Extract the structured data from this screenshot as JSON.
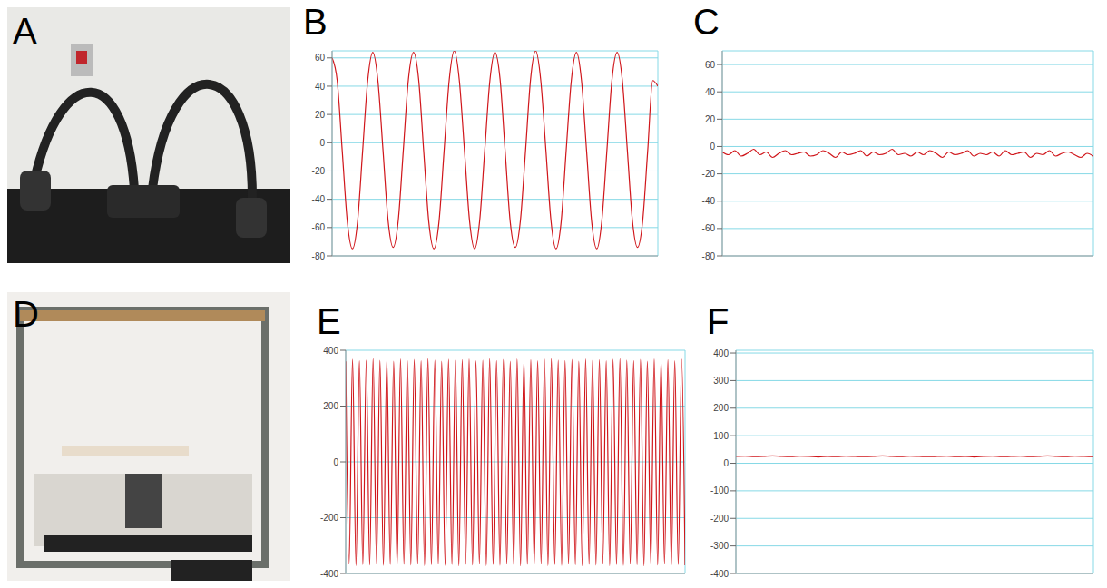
{
  "photos": [
    {
      "panel_label": "A"
    },
    {
      "panel_label": "D"
    }
  ],
  "chart_data": [
    {
      "panel_label": "B",
      "type": "line",
      "color": "#d0161b",
      "grid": true,
      "tick_labels": "y",
      "xlim": [
        0,
        64
      ],
      "xticks": [
        0,
        8,
        16,
        24,
        32,
        40,
        48,
        56,
        64
      ],
      "ylim": [
        -80,
        65
      ],
      "yticks": [
        -80,
        -60,
        -40,
        -20,
        0,
        20,
        40,
        60
      ],
      "x": [
        0,
        1,
        2,
        3,
        4,
        5,
        6,
        7,
        8,
        9,
        10,
        11,
        12,
        13,
        14,
        15,
        16,
        17,
        18,
        19,
        20,
        21,
        22,
        23,
        24,
        25,
        26,
        27,
        28,
        29,
        30,
        31,
        32,
        33,
        34,
        35,
        36,
        37,
        38,
        39,
        40,
        41,
        42,
        43,
        44,
        45,
        46,
        47,
        48,
        49,
        50,
        51,
        52,
        53,
        54,
        55,
        56,
        57,
        58,
        59,
        60,
        61,
        62,
        63,
        64
      ],
      "values": [
        60,
        44,
        -6,
        -56,
        -75,
        -56,
        -6,
        44,
        64,
        44,
        -5,
        -55,
        -74,
        -55,
        -5,
        45,
        64,
        45,
        -6,
        -56,
        -75,
        -56,
        -6,
        44,
        65,
        44,
        -5,
        -55,
        -75,
        -55,
        -5,
        44,
        64,
        45,
        -6,
        -56,
        -74,
        -55,
        -6,
        45,
        65,
        44,
        -5,
        -55,
        -75,
        -56,
        -5,
        44,
        64,
        44,
        -6,
        -56,
        -75,
        -55,
        -5,
        45,
        64,
        45,
        -5,
        -55,
        -74,
        -56,
        -6,
        44,
        40
      ]
    },
    {
      "panel_label": "C",
      "type": "line",
      "color": "#d0161b",
      "grid": true,
      "tick_labels": "y",
      "xlim": [
        0,
        59
      ],
      "xticks": [
        0,
        10,
        20,
        30,
        40,
        50
      ],
      "ylim": [
        -80,
        70
      ],
      "yticks": [
        -80,
        -60,
        -40,
        -20,
        0,
        20,
        40,
        60
      ],
      "x": [
        0,
        1,
        2,
        3,
        4,
        5,
        6,
        7,
        8,
        9,
        10,
        11,
        12,
        13,
        14,
        15,
        16,
        17,
        18,
        19,
        20,
        21,
        22,
        23,
        24,
        25,
        26,
        27,
        28,
        29,
        30,
        31,
        32,
        33,
        34,
        35,
        36,
        37,
        38,
        39,
        40,
        41,
        42,
        43,
        44,
        45,
        46,
        47,
        48,
        49,
        50,
        51,
        52,
        53,
        54,
        55,
        56,
        57,
        58,
        59
      ],
      "values": [
        -4,
        -6,
        -3,
        -7,
        -5,
        -2,
        -6,
        -4,
        -8,
        -5,
        -3,
        -6,
        -5,
        -4,
        -7,
        -6,
        -3,
        -5,
        -8,
        -4,
        -6,
        -5,
        -3,
        -7,
        -4,
        -6,
        -5,
        -2,
        -6,
        -5,
        -7,
        -4,
        -6,
        -3,
        -5,
        -8,
        -4,
        -6,
        -5,
        -3,
        -7,
        -5,
        -6,
        -4,
        -7,
        -3,
        -6,
        -5,
        -4,
        -8,
        -5,
        -6,
        -3,
        -7,
        -5,
        -4,
        -6,
        -8,
        -5,
        -7
      ]
    },
    {
      "panel_label": "E",
      "type": "line",
      "color": "#d0161b",
      "grid": true,
      "tick_labels": "y",
      "xlim": [
        0,
        99
      ],
      "xticks": [
        0,
        11,
        22,
        33,
        44,
        55,
        66,
        77,
        88,
        99
      ],
      "ylim": [
        -400,
        400
      ],
      "yticks": [
        -400,
        -200,
        0,
        200,
        400
      ],
      "x": [
        0,
        1,
        2,
        3,
        4,
        5,
        6,
        7,
        8,
        9,
        10,
        11,
        12,
        13,
        14,
        15,
        16,
        17,
        18,
        19,
        20,
        21,
        22,
        23,
        24,
        25,
        26,
        27,
        28,
        29,
        30,
        31,
        32,
        33,
        34,
        35,
        36,
        37,
        38,
        39,
        40,
        41,
        42,
        43,
        44,
        45,
        46,
        47,
        48,
        49,
        50,
        51,
        52,
        53,
        54,
        55,
        56,
        57,
        58,
        59,
        60,
        61,
        62,
        63,
        64,
        65,
        66,
        67,
        68,
        69,
        70,
        71,
        72,
        73,
        74,
        75,
        76,
        77,
        78,
        79,
        80,
        81,
        82,
        83,
        84,
        85,
        86,
        87,
        88,
        89,
        90,
        91,
        92,
        93,
        94,
        95,
        96,
        97,
        98,
        99
      ],
      "values": [
        360,
        -365,
        368,
        -372,
        362,
        -368,
        365,
        -370,
        370,
        -366,
        364,
        -371,
        366,
        -368,
        361,
        -373,
        369,
        -367,
        363,
        -370,
        367,
        -365,
        362,
        -372,
        370,
        -369,
        365,
        -366,
        361,
        -371,
        368,
        -368,
        364,
        -373,
        366,
        -367,
        369,
        -370,
        362,
        -365,
        365,
        -372,
        370,
        -368,
        363,
        -371,
        367,
        -366,
        361,
        -369,
        369,
        -373,
        364,
        -367,
        366,
        -370,
        362,
        -365,
        368,
        -372,
        370,
        -368,
        365,
        -371,
        363,
        -366,
        367,
        -369,
        361,
        -373,
        369,
        -367,
        364,
        -370,
        366,
        -365,
        362,
        -372,
        368,
        -368,
        370,
        -371,
        365,
        -366,
        363,
        -369,
        367,
        -373,
        361,
        -367,
        369,
        -370,
        364,
        -365,
        366,
        -372,
        362,
        -368,
        368,
        -371
      ]
    },
    {
      "panel_label": "F",
      "type": "line",
      "color": "#d0161b",
      "grid": true,
      "tick_labels": "y",
      "xlim": [
        0,
        39
      ],
      "xticks": [
        0,
        5,
        10,
        15,
        20,
        25,
        30,
        35
      ],
      "ylim": [
        -400,
        410
      ],
      "yticks": [
        -400,
        -300,
        -200,
        -100,
        0,
        100,
        200,
        300,
        400
      ],
      "x": [
        0,
        1,
        2,
        3,
        4,
        5,
        6,
        7,
        8,
        9,
        10,
        11,
        12,
        13,
        14,
        15,
        16,
        17,
        18,
        19,
        20,
        21,
        22,
        23,
        24,
        25,
        26,
        27,
        28,
        29,
        30,
        31,
        32,
        33,
        34,
        35,
        36,
        37,
        38,
        39
      ],
      "values": [
        25,
        26,
        24,
        25,
        27,
        25,
        24,
        26,
        25,
        23,
        25,
        24,
        26,
        25,
        24,
        25,
        27,
        25,
        24,
        26,
        25,
        24,
        25,
        26,
        24,
        25,
        23,
        25,
        26,
        24,
        25,
        26,
        24,
        25,
        27,
        25,
        24,
        26,
        25,
        24
      ]
    }
  ]
}
